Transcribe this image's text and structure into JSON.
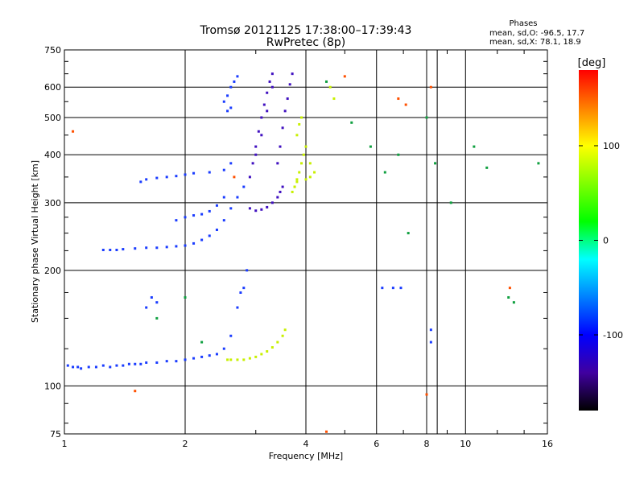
{
  "chart_data": {
    "type": "scatter",
    "title": "Tromsø 20121125 17:38:00–17:39:43",
    "subtitle": "RwPretec (8p)",
    "xlabel": "Frequency [MHz]",
    "ylabel": "Stationary phase Virtual Height [km]",
    "x_scale": "log",
    "y_scale": "log",
    "xlim": [
      1,
      16
    ],
    "ylim": [
      75,
      750
    ],
    "x_ticks": [
      1,
      2,
      4,
      6,
      8,
      10,
      16
    ],
    "y_ticks": [
      75,
      100,
      200,
      300,
      400,
      500,
      600,
      750
    ],
    "grid": true,
    "stats": {
      "heading": "Phases",
      "line_o": "mean, sd,O: -96.5, 17.7",
      "line_x": "mean, sd,X:  78.1, 18.9"
    },
    "colorbar": {
      "label": "[deg]",
      "range": [
        -180,
        180
      ],
      "ticks": [
        100,
        0,
        -100
      ],
      "colors": [
        "#ff0000",
        "#ff8000",
        "#ffff00",
        "#80ff00",
        "#00ff00",
        "#00ffff",
        "#0080ff",
        "#0000ff",
        "#4000a0",
        "#000000"
      ]
    },
    "series": [
      {
        "mode": "O",
        "phase_deg": -100,
        "color": "#1a3cff",
        "points": [
          [
            1.02,
            113
          ],
          [
            1.05,
            112
          ],
          [
            1.08,
            112
          ],
          [
            1.1,
            111
          ],
          [
            1.15,
            112
          ],
          [
            1.2,
            112
          ],
          [
            1.25,
            113
          ],
          [
            1.3,
            112
          ],
          [
            1.35,
            113
          ],
          [
            1.4,
            113
          ],
          [
            1.45,
            114
          ],
          [
            1.5,
            114
          ],
          [
            1.55,
            114
          ],
          [
            1.6,
            115
          ],
          [
            1.7,
            115
          ],
          [
            1.8,
            116
          ],
          [
            1.9,
            116
          ],
          [
            2.0,
            117
          ],
          [
            2.1,
            118
          ],
          [
            2.2,
            119
          ],
          [
            2.3,
            120
          ],
          [
            2.4,
            121
          ],
          [
            2.5,
            125
          ],
          [
            2.6,
            135
          ],
          [
            2.7,
            160
          ],
          [
            2.75,
            175
          ],
          [
            1.25,
            226
          ],
          [
            1.3,
            226
          ],
          [
            1.35,
            226
          ],
          [
            1.4,
            227
          ],
          [
            1.5,
            228
          ],
          [
            1.6,
            229
          ],
          [
            1.7,
            229
          ],
          [
            1.8,
            230
          ],
          [
            1.9,
            231
          ],
          [
            2.0,
            232
          ],
          [
            2.1,
            235
          ],
          [
            2.2,
            240
          ],
          [
            2.3,
            246
          ],
          [
            2.4,
            255
          ],
          [
            2.5,
            270
          ],
          [
            2.6,
            290
          ],
          [
            2.7,
            310
          ],
          [
            2.8,
            330
          ],
          [
            1.6,
            160
          ],
          [
            1.65,
            170
          ],
          [
            1.7,
            165
          ],
          [
            1.55,
            340
          ],
          [
            1.6,
            345
          ],
          [
            1.7,
            348
          ],
          [
            1.8,
            350
          ],
          [
            1.9,
            352
          ],
          [
            2.0,
            355
          ],
          [
            2.1,
            358
          ],
          [
            2.3,
            360
          ],
          [
            2.5,
            365
          ],
          [
            2.6,
            380
          ],
          [
            1.9,
            270
          ],
          [
            2.0,
            275
          ],
          [
            2.1,
            278
          ],
          [
            2.2,
            280
          ],
          [
            2.3,
            285
          ],
          [
            2.4,
            295
          ],
          [
            2.5,
            310
          ],
          [
            2.5,
            550
          ],
          [
            2.55,
            570
          ],
          [
            2.6,
            600
          ],
          [
            2.65,
            620
          ],
          [
            2.7,
            640
          ],
          [
            2.55,
            520
          ],
          [
            2.6,
            530
          ],
          [
            2.8,
            180
          ],
          [
            2.85,
            200
          ],
          [
            6.2,
            180
          ],
          [
            6.6,
            180
          ],
          [
            6.9,
            180
          ],
          [
            8.2,
            140
          ],
          [
            8.2,
            130
          ]
        ]
      },
      {
        "mode": "O (cusp)",
        "phase_deg": -120,
        "color": "#4010c0",
        "points": [
          [
            2.9,
            290
          ],
          [
            3.0,
            286
          ],
          [
            3.1,
            288
          ],
          [
            3.2,
            292
          ],
          [
            3.3,
            300
          ],
          [
            3.4,
            310
          ],
          [
            3.45,
            320
          ],
          [
            3.5,
            330
          ],
          [
            2.9,
            350
          ],
          [
            2.95,
            380
          ],
          [
            3.0,
            420
          ],
          [
            3.05,
            460
          ],
          [
            3.1,
            500
          ],
          [
            3.15,
            540
          ],
          [
            3.2,
            580
          ],
          [
            3.25,
            620
          ],
          [
            3.3,
            650
          ],
          [
            3.0,
            400
          ],
          [
            3.1,
            450
          ],
          [
            3.2,
            520
          ],
          [
            3.3,
            600
          ],
          [
            3.4,
            380
          ],
          [
            3.45,
            420
          ],
          [
            3.5,
            470
          ],
          [
            3.55,
            520
          ],
          [
            3.6,
            560
          ],
          [
            3.65,
            610
          ],
          [
            3.7,
            650
          ]
        ]
      },
      {
        "mode": "X",
        "phase_deg": 80,
        "color": "#c8f000",
        "points": [
          [
            2.55,
            117
          ],
          [
            2.6,
            117
          ],
          [
            2.7,
            117
          ],
          [
            2.8,
            117
          ],
          [
            2.9,
            118
          ],
          [
            3.0,
            119
          ],
          [
            3.1,
            121
          ],
          [
            3.2,
            123
          ],
          [
            3.3,
            126
          ],
          [
            3.4,
            130
          ],
          [
            3.5,
            135
          ],
          [
            3.55,
            140
          ],
          [
            3.7,
            320
          ],
          [
            3.75,
            330
          ],
          [
            3.8,
            345
          ],
          [
            3.85,
            360
          ],
          [
            3.9,
            380
          ],
          [
            3.95,
            400
          ],
          [
            4.0,
            420
          ],
          [
            4.1,
            380
          ],
          [
            4.2,
            360
          ],
          [
            3.8,
            450
          ],
          [
            3.85,
            480
          ],
          [
            3.9,
            500
          ],
          [
            3.75,
            330
          ],
          [
            3.8,
            340
          ],
          [
            4.0,
            345
          ],
          [
            4.1,
            350
          ],
          [
            4.6,
            600
          ],
          [
            4.7,
            560
          ]
        ]
      },
      {
        "mode": "noise",
        "phase_deg": 0,
        "color": "#10a040",
        "points": [
          [
            1.7,
            150
          ],
          [
            2.0,
            170
          ],
          [
            2.2,
            130
          ],
          [
            4.5,
            620
          ],
          [
            5.2,
            485
          ],
          [
            5.8,
            420
          ],
          [
            6.3,
            360
          ],
          [
            6.8,
            400
          ],
          [
            7.2,
            250
          ],
          [
            8.0,
            500
          ],
          [
            8.4,
            380
          ],
          [
            9.2,
            300
          ],
          [
            10.5,
            420
          ],
          [
            11.3,
            370
          ],
          [
            12.8,
            170
          ],
          [
            13.2,
            165
          ],
          [
            15.2,
            380
          ]
        ]
      },
      {
        "mode": "noise",
        "phase_deg": 150,
        "color": "#ff5000",
        "points": [
          [
            1.05,
            460
          ],
          [
            1.5,
            97
          ],
          [
            2.65,
            350
          ],
          [
            6.8,
            560
          ],
          [
            7.1,
            540
          ],
          [
            8.0,
            95
          ],
          [
            8.2,
            600
          ],
          [
            12.9,
            180
          ],
          [
            4.5,
            76
          ],
          [
            5.0,
            640
          ]
        ]
      }
    ]
  }
}
